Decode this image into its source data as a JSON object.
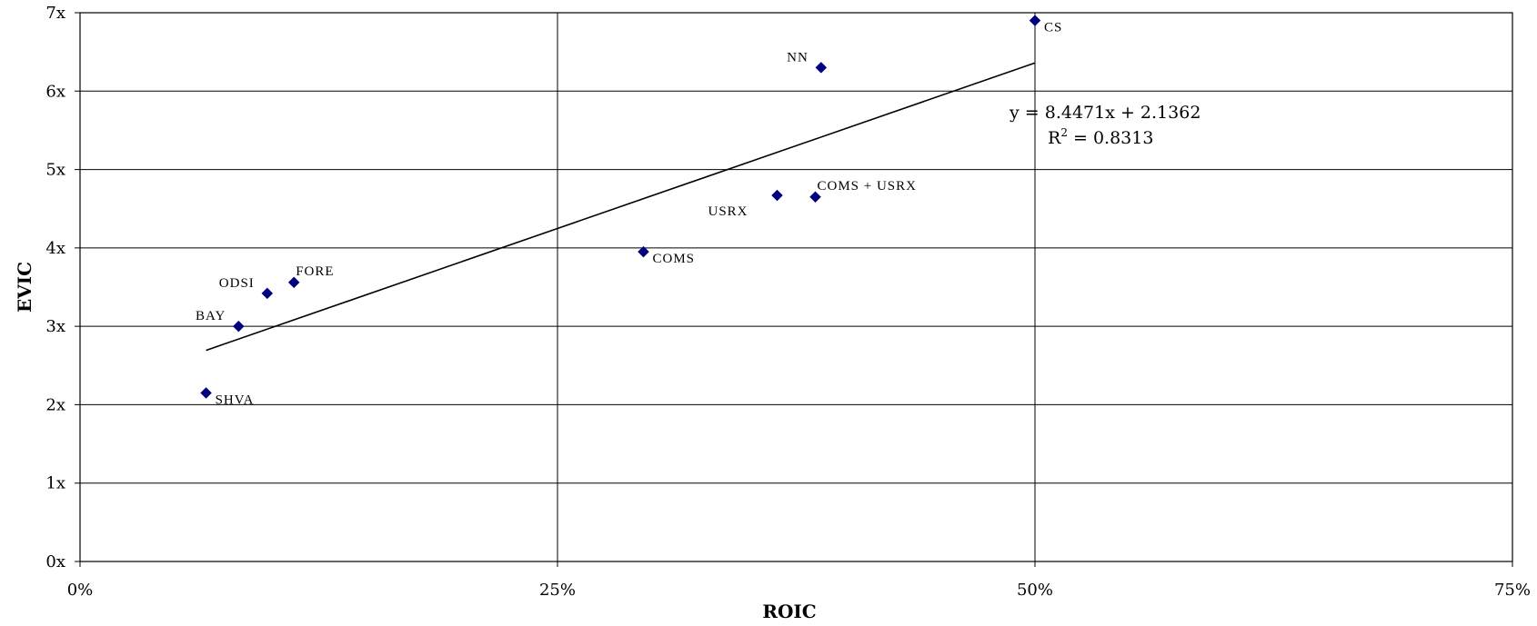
{
  "chart_data": {
    "type": "scatter",
    "title": "",
    "xlabel": "ROIC",
    "ylabel": "EVIC",
    "xlim": [
      0,
      0.75
    ],
    "ylim": [
      0,
      7
    ],
    "x_ticks": [
      {
        "value": 0,
        "label": "0%"
      },
      {
        "value": 0.25,
        "label": "25%"
      },
      {
        "value": 0.5,
        "label": "50%"
      },
      {
        "value": 0.75,
        "label": "75%"
      }
    ],
    "y_ticks": [
      {
        "value": 0,
        "label": "0x"
      },
      {
        "value": 1,
        "label": "1x"
      },
      {
        "value": 2,
        "label": "2x"
      },
      {
        "value": 3,
        "label": "3x"
      },
      {
        "value": 4,
        "label": "4x"
      },
      {
        "value": 5,
        "label": "5x"
      },
      {
        "value": 6,
        "label": "6x"
      },
      {
        "value": 7,
        "label": "7x"
      }
    ],
    "grid": true,
    "marker_color": "#00007f",
    "points": [
      {
        "label": "SHVA",
        "x": 0.066,
        "y": 2.15,
        "label_pos": "right"
      },
      {
        "label": "BAY",
        "x": 0.083,
        "y": 3.0,
        "label_pos": "upper-left"
      },
      {
        "label": "ODSI",
        "x": 0.098,
        "y": 3.42,
        "label_pos": "upper-left"
      },
      {
        "label": "FORE",
        "x": 0.112,
        "y": 3.56,
        "label_pos": "upper-right"
      },
      {
        "label": "COMS",
        "x": 0.295,
        "y": 3.95,
        "label_pos": "right"
      },
      {
        "label": "USRX",
        "x": 0.365,
        "y": 4.67,
        "label_pos": "lower-left"
      },
      {
        "label": "COMS + USRX",
        "x": 0.385,
        "y": 4.65,
        "label_pos": "upper-right"
      },
      {
        "label": "NN",
        "x": 0.388,
        "y": 6.3,
        "label_pos": "upper-left"
      },
      {
        "label": "CS",
        "x": 0.5,
        "y": 6.9,
        "label_pos": "right"
      }
    ],
    "trendline": {
      "slope": 8.4471,
      "intercept": 2.1362,
      "x_range": [
        0.066,
        0.5
      ],
      "equation": "y = 8.4471x + 2.1362",
      "r2_label": "R",
      "r2_exp": "2",
      "r2_value": " = 0.8313"
    }
  }
}
